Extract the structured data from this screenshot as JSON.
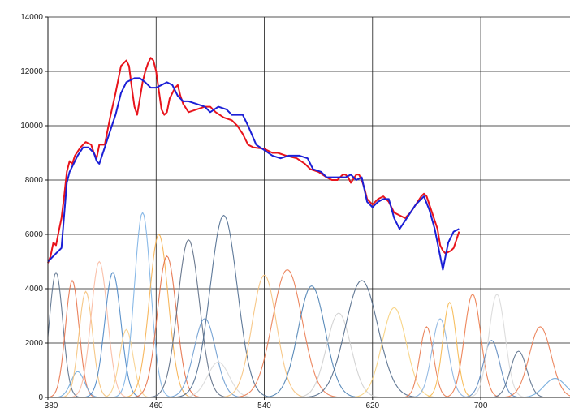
{
  "chart_data": {
    "type": "line",
    "title": "",
    "xlabel": "",
    "ylabel": "",
    "xlim": [
      380,
      766
    ],
    "ylim": [
      0,
      14000
    ],
    "grid": true,
    "x_ticks": [
      380,
      460,
      540,
      620,
      700
    ],
    "y_ticks": [
      0,
      2000,
      4000,
      6000,
      8000,
      10000,
      12000,
      14000
    ],
    "x_tick_labels": [
      "380",
      "460",
      "540",
      "620",
      "700"
    ],
    "y_tick_labels": [
      "0",
      "2000",
      "4000",
      "6000",
      "8000",
      "10000",
      "12000",
      "14000"
    ],
    "series": [
      {
        "color": "#e8141c",
        "points": [
          [
            380,
            4950
          ],
          [
            382,
            5200
          ],
          [
            384,
            5700
          ],
          [
            386,
            5600
          ],
          [
            388,
            6100
          ],
          [
            390,
            6600
          ],
          [
            392,
            7400
          ],
          [
            394,
            8300
          ],
          [
            396,
            8700
          ],
          [
            398,
            8600
          ],
          [
            400,
            8900
          ],
          [
            404,
            9200
          ],
          [
            408,
            9400
          ],
          [
            412,
            9300
          ],
          [
            414,
            9000
          ],
          [
            416,
            8800
          ],
          [
            418,
            9300
          ],
          [
            422,
            9300
          ],
          [
            426,
            10300
          ],
          [
            430,
            11200
          ],
          [
            434,
            12200
          ],
          [
            438,
            12400
          ],
          [
            440,
            12200
          ],
          [
            442,
            11400
          ],
          [
            444,
            10700
          ],
          [
            446,
            10400
          ],
          [
            448,
            11000
          ],
          [
            450,
            11600
          ],
          [
            452,
            12000
          ],
          [
            454,
            12300
          ],
          [
            456,
            12500
          ],
          [
            458,
            12400
          ],
          [
            460,
            12000
          ],
          [
            462,
            11300
          ],
          [
            464,
            10600
          ],
          [
            466,
            10400
          ],
          [
            468,
            10500
          ],
          [
            470,
            11000
          ],
          [
            474,
            11400
          ],
          [
            476,
            11500
          ],
          [
            478,
            11100
          ],
          [
            480,
            10800
          ],
          [
            484,
            10500
          ],
          [
            490,
            10600
          ],
          [
            496,
            10700
          ],
          [
            500,
            10700
          ],
          [
            504,
            10500
          ],
          [
            510,
            10300
          ],
          [
            516,
            10200
          ],
          [
            520,
            10000
          ],
          [
            524,
            9700
          ],
          [
            528,
            9300
          ],
          [
            532,
            9200
          ],
          [
            540,
            9150
          ],
          [
            546,
            9000
          ],
          [
            550,
            9000
          ],
          [
            556,
            8900
          ],
          [
            564,
            8800
          ],
          [
            570,
            8600
          ],
          [
            574,
            8400
          ],
          [
            580,
            8300
          ],
          [
            586,
            8100
          ],
          [
            590,
            8000
          ],
          [
            594,
            8000
          ],
          [
            598,
            8200
          ],
          [
            600,
            8200
          ],
          [
            602,
            8100
          ],
          [
            604,
            7900
          ],
          [
            608,
            8200
          ],
          [
            610,
            8200
          ],
          [
            612,
            8000
          ],
          [
            614,
            7700
          ],
          [
            616,
            7300
          ],
          [
            620,
            7100
          ],
          [
            624,
            7300
          ],
          [
            628,
            7400
          ],
          [
            632,
            7200
          ],
          [
            636,
            6800
          ],
          [
            640,
            6700
          ],
          [
            644,
            6600
          ],
          [
            648,
            6800
          ],
          [
            652,
            7100
          ],
          [
            656,
            7400
          ],
          [
            658,
            7500
          ],
          [
            660,
            7400
          ],
          [
            664,
            6800
          ],
          [
            668,
            6200
          ],
          [
            670,
            5600
          ],
          [
            672,
            5400
          ],
          [
            674,
            5300
          ],
          [
            678,
            5400
          ],
          [
            680,
            5500
          ],
          [
            682,
            5800
          ],
          [
            684,
            6100
          ]
        ]
      },
      {
        "color": "#1b1fd6",
        "points": [
          [
            380,
            5000
          ],
          [
            386,
            5300
          ],
          [
            390,
            5500
          ],
          [
            394,
            7900
          ],
          [
            396,
            8300
          ],
          [
            398,
            8500
          ],
          [
            402,
            8900
          ],
          [
            406,
            9200
          ],
          [
            410,
            9200
          ],
          [
            414,
            9000
          ],
          [
            416,
            8700
          ],
          [
            418,
            8600
          ],
          [
            422,
            9200
          ],
          [
            426,
            9800
          ],
          [
            430,
            10400
          ],
          [
            434,
            11200
          ],
          [
            438,
            11600
          ],
          [
            444,
            11750
          ],
          [
            448,
            11750
          ],
          [
            452,
            11600
          ],
          [
            456,
            11400
          ],
          [
            460,
            11400
          ],
          [
            464,
            11500
          ],
          [
            468,
            11600
          ],
          [
            472,
            11500
          ],
          [
            476,
            11100
          ],
          [
            480,
            10900
          ],
          [
            484,
            10900
          ],
          [
            490,
            10800
          ],
          [
            496,
            10700
          ],
          [
            500,
            10500
          ],
          [
            506,
            10700
          ],
          [
            512,
            10600
          ],
          [
            516,
            10400
          ],
          [
            524,
            10400
          ],
          [
            528,
            10000
          ],
          [
            534,
            9300
          ],
          [
            540,
            9100
          ],
          [
            546,
            8900
          ],
          [
            552,
            8800
          ],
          [
            558,
            8900
          ],
          [
            566,
            8900
          ],
          [
            572,
            8800
          ],
          [
            576,
            8400
          ],
          [
            582,
            8300
          ],
          [
            586,
            8100
          ],
          [
            592,
            8100
          ],
          [
            596,
            8100
          ],
          [
            600,
            8100
          ],
          [
            604,
            8200
          ],
          [
            608,
            8000
          ],
          [
            612,
            8100
          ],
          [
            616,
            7200
          ],
          [
            620,
            7000
          ],
          [
            624,
            7200
          ],
          [
            628,
            7300
          ],
          [
            632,
            7300
          ],
          [
            636,
            6600
          ],
          [
            640,
            6200
          ],
          [
            644,
            6500
          ],
          [
            648,
            6800
          ],
          [
            652,
            7100
          ],
          [
            656,
            7300
          ],
          [
            658,
            7400
          ],
          [
            662,
            6900
          ],
          [
            666,
            6200
          ],
          [
            670,
            5200
          ],
          [
            672,
            4700
          ],
          [
            674,
            5200
          ],
          [
            676,
            5700
          ],
          [
            680,
            6100
          ],
          [
            684,
            6200
          ]
        ]
      }
    ],
    "components": [
      {
        "color": "#5a708c",
        "center": 386,
        "height": 4600,
        "sigma": 5
      },
      {
        "color": "#e8734a",
        "center": 398,
        "height": 4300,
        "sigma": 5
      },
      {
        "color": "#6fa8dc",
        "center": 402,
        "height": 950,
        "sigma": 5
      },
      {
        "color": "#f5c27a",
        "center": 408,
        "height": 3900,
        "sigma": 5
      },
      {
        "color": "#f9b9a0",
        "center": 418,
        "height": 5000,
        "sigma": 6
      },
      {
        "color": "#4a86c5",
        "center": 428,
        "height": 4600,
        "sigma": 6
      },
      {
        "color": "#f7cf8a",
        "center": 438,
        "height": 2500,
        "sigma": 5
      },
      {
        "color": "#7cb1e4",
        "center": 450,
        "height": 6800,
        "sigma": 6
      },
      {
        "color": "#f6b04e",
        "center": 462,
        "height": 6000,
        "sigma": 7
      },
      {
        "color": "#e56f45",
        "center": 468,
        "height": 5200,
        "sigma": 7
      },
      {
        "color": "#5b6b84",
        "center": 484,
        "height": 5800,
        "sigma": 8
      },
      {
        "color": "#6a9bd0",
        "center": 496,
        "height": 2900,
        "sigma": 8
      },
      {
        "color": "#d8d8d8",
        "center": 506,
        "height": 1300,
        "sigma": 8
      },
      {
        "color": "#4d6a8e",
        "center": 510,
        "height": 6700,
        "sigma": 10
      },
      {
        "color": "#f6c27c",
        "center": 540,
        "height": 4500,
        "sigma": 9
      },
      {
        "color": "#ea7b50",
        "center": 557,
        "height": 4700,
        "sigma": 11
      },
      {
        "color": "#4a7fb3",
        "center": 575,
        "height": 4100,
        "sigma": 10
      },
      {
        "color": "#cfcfcf",
        "center": 595,
        "height": 3100,
        "sigma": 9
      },
      {
        "color": "#50698a",
        "center": 612,
        "height": 4300,
        "sigma": 12
      },
      {
        "color": "#f7d07c",
        "center": 636,
        "height": 3300,
        "sigma": 9
      },
      {
        "color": "#e87a4f",
        "center": 660,
        "height": 2600,
        "sigma": 5
      },
      {
        "color": "#8bb4e0",
        "center": 670,
        "height": 2900,
        "sigma": 6
      },
      {
        "color": "#f6b84f",
        "center": 677,
        "height": 3500,
        "sigma": 5
      },
      {
        "color": "#ec7a4a",
        "center": 694,
        "height": 3800,
        "sigma": 6
      },
      {
        "color": "#5a87bf",
        "center": 708,
        "height": 2100,
        "sigma": 6
      },
      {
        "color": "#d9d9d9",
        "center": 712,
        "height": 3800,
        "sigma": 6
      },
      {
        "color": "#5a708c",
        "center": 728,
        "height": 1700,
        "sigma": 6
      },
      {
        "color": "#ea7b50",
        "center": 744,
        "height": 2600,
        "sigma": 8
      },
      {
        "color": "#6fa8dc",
        "center": 755,
        "height": 700,
        "sigma": 8
      }
    ]
  }
}
